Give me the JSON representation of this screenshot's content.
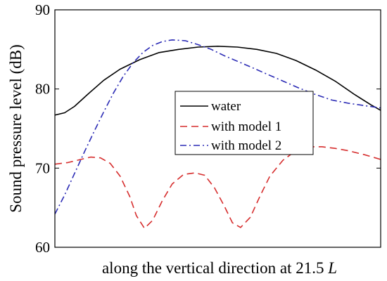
{
  "chart_data": {
    "type": "line",
    "xlabel": "along the vertical direction at ",
    "xlabel_value": "21.5",
    "xlabel_unit": "L",
    "ylabel": "Sound pressure level (dB)",
    "ylim": [
      60,
      90
    ],
    "yticks": [
      60,
      70,
      80,
      90
    ],
    "xlim": [
      0,
      1
    ],
    "x_ticks_shown": false,
    "grid": false,
    "legend_position": "center-right",
    "series": [
      {
        "name": "water",
        "color": "#000000",
        "dash": "solid",
        "points": [
          [
            0.0,
            76.7
          ],
          [
            0.03,
            77.0
          ],
          [
            0.06,
            77.8
          ],
          [
            0.1,
            79.3
          ],
          [
            0.15,
            81.1
          ],
          [
            0.2,
            82.5
          ],
          [
            0.26,
            83.7
          ],
          [
            0.32,
            84.6
          ],
          [
            0.38,
            85.0
          ],
          [
            0.44,
            85.3
          ],
          [
            0.5,
            85.4
          ],
          [
            0.56,
            85.3
          ],
          [
            0.62,
            85.0
          ],
          [
            0.68,
            84.5
          ],
          [
            0.74,
            83.6
          ],
          [
            0.8,
            82.4
          ],
          [
            0.86,
            81.0
          ],
          [
            0.92,
            79.3
          ],
          [
            0.97,
            78.0
          ],
          [
            1.0,
            77.3
          ]
        ]
      },
      {
        "name": "with model 1",
        "color": "#d62d2d",
        "dash": "dashed",
        "points": [
          [
            0.0,
            70.5
          ],
          [
            0.04,
            70.7
          ],
          [
            0.08,
            71.1
          ],
          [
            0.11,
            71.4
          ],
          [
            0.14,
            71.3
          ],
          [
            0.17,
            70.6
          ],
          [
            0.2,
            69.0
          ],
          [
            0.23,
            66.4
          ],
          [
            0.25,
            64.0
          ],
          [
            0.275,
            62.4
          ],
          [
            0.3,
            63.4
          ],
          [
            0.33,
            65.9
          ],
          [
            0.36,
            68.0
          ],
          [
            0.395,
            69.2
          ],
          [
            0.43,
            69.4
          ],
          [
            0.46,
            69.1
          ],
          [
            0.49,
            67.5
          ],
          [
            0.52,
            65.2
          ],
          [
            0.545,
            63.1
          ],
          [
            0.57,
            62.5
          ],
          [
            0.6,
            63.8
          ],
          [
            0.63,
            66.5
          ],
          [
            0.66,
            69.0
          ],
          [
            0.7,
            71.0
          ],
          [
            0.74,
            72.2
          ],
          [
            0.78,
            72.7
          ],
          [
            0.82,
            72.7
          ],
          [
            0.86,
            72.5
          ],
          [
            0.9,
            72.2
          ],
          [
            0.95,
            71.7
          ],
          [
            1.0,
            71.1
          ]
        ]
      },
      {
        "name": "with model 2",
        "color": "#2b2bb5",
        "dash": "dashdot",
        "points": [
          [
            0.0,
            64.2
          ],
          [
            0.03,
            66.6
          ],
          [
            0.06,
            69.3
          ],
          [
            0.09,
            72.0
          ],
          [
            0.12,
            74.6
          ],
          [
            0.15,
            77.1
          ],
          [
            0.18,
            79.5
          ],
          [
            0.21,
            81.6
          ],
          [
            0.24,
            83.3
          ],
          [
            0.27,
            84.6
          ],
          [
            0.3,
            85.5
          ],
          [
            0.33,
            86.0
          ],
          [
            0.36,
            86.2
          ],
          [
            0.4,
            86.1
          ],
          [
            0.44,
            85.6
          ],
          [
            0.48,
            85.0
          ],
          [
            0.52,
            84.2
          ],
          [
            0.56,
            83.5
          ],
          [
            0.6,
            82.8
          ],
          [
            0.65,
            81.9
          ],
          [
            0.7,
            81.0
          ],
          [
            0.75,
            80.1
          ],
          [
            0.8,
            79.3
          ],
          [
            0.85,
            78.6
          ],
          [
            0.9,
            78.2
          ],
          [
            0.95,
            77.9
          ],
          [
            1.0,
            77.6
          ]
        ]
      }
    ]
  }
}
